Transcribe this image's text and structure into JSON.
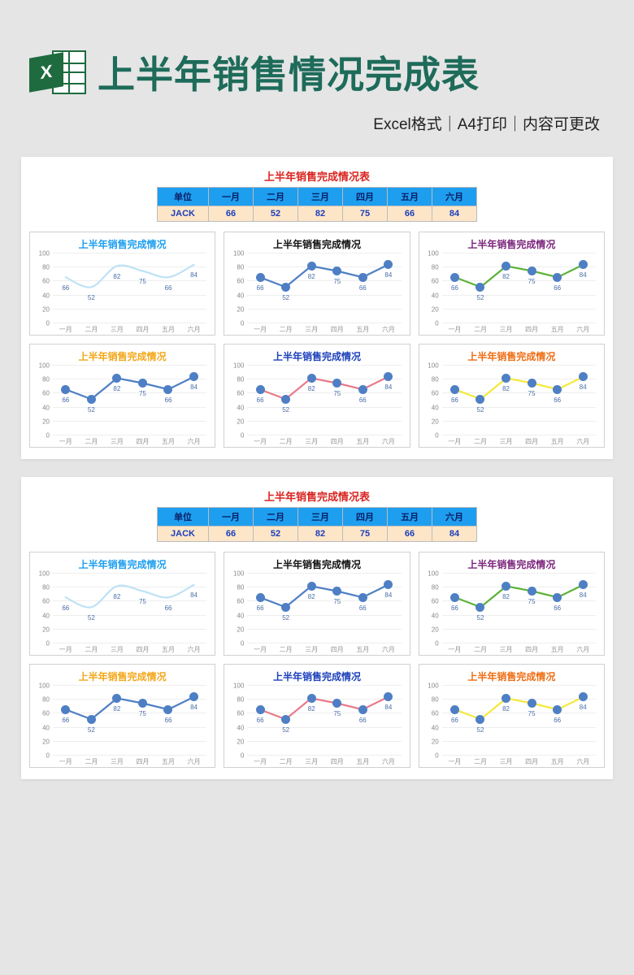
{
  "header": {
    "icon_letter": "X",
    "title": "上半年销售情况完成表",
    "subtitle": "Excel格式｜A4打印｜内容可更改",
    "title_color": "#1e6b5a"
  },
  "table": {
    "title": "上半年销售完成情况表",
    "title_color": "#d9241f",
    "header_bg": "#1e9eef",
    "header_fg": "#0a1f66",
    "row_bg": "#fde6c8",
    "row_fg": "#1b3fbb",
    "columns": [
      "单位",
      "一月",
      "二月",
      "三月",
      "四月",
      "五月",
      "六月"
    ],
    "rows": [
      [
        "JACK",
        66,
        52,
        82,
        75,
        66,
        84
      ]
    ]
  },
  "chart_common": {
    "xlabels": [
      "一月",
      "二月",
      "三月",
      "四月",
      "五月",
      "六月"
    ],
    "values": [
      66,
      52,
      82,
      75,
      66,
      84
    ],
    "ylim": [
      0,
      100
    ],
    "ytick_step": 20,
    "yticks": [
      0,
      20,
      40,
      60,
      80,
      100
    ],
    "grid_color": "#eeeeee",
    "label_color": "#4a6fa8",
    "marker_fill": "#4e7fc4",
    "marker_radius": 5.5,
    "line_width": 2.2,
    "value_fontsize": 8,
    "axis_fontsize": 8
  },
  "charts": [
    {
      "title": "上半年销售完成情况",
      "title_color": "#1e9eef",
      "line_color": "#bfe2f5",
      "smooth": true,
      "show_markers": false
    },
    {
      "title": "上半年销售完成情况",
      "title_color": "#111111",
      "line_color": "#4e7fc4",
      "smooth": false,
      "show_markers": true
    },
    {
      "title": "上半年销售完成情况",
      "title_color": "#7b247c",
      "line_color": "#5db23a",
      "smooth": false,
      "show_markers": true
    },
    {
      "title": "上半年销售完成情况",
      "title_color": "#f4a617",
      "line_color": "#4e7fc4",
      "smooth": false,
      "show_markers": true
    },
    {
      "title": "上半年销售完成情况",
      "title_color": "#1b3fbb",
      "line_color": "#e97a8a",
      "smooth": false,
      "show_markers": true
    },
    {
      "title": "上半年销售完成情况",
      "title_color": "#ef6c12",
      "line_color": "#f5e93a",
      "smooth": false,
      "show_markers": true
    }
  ],
  "panels_count": 2
}
